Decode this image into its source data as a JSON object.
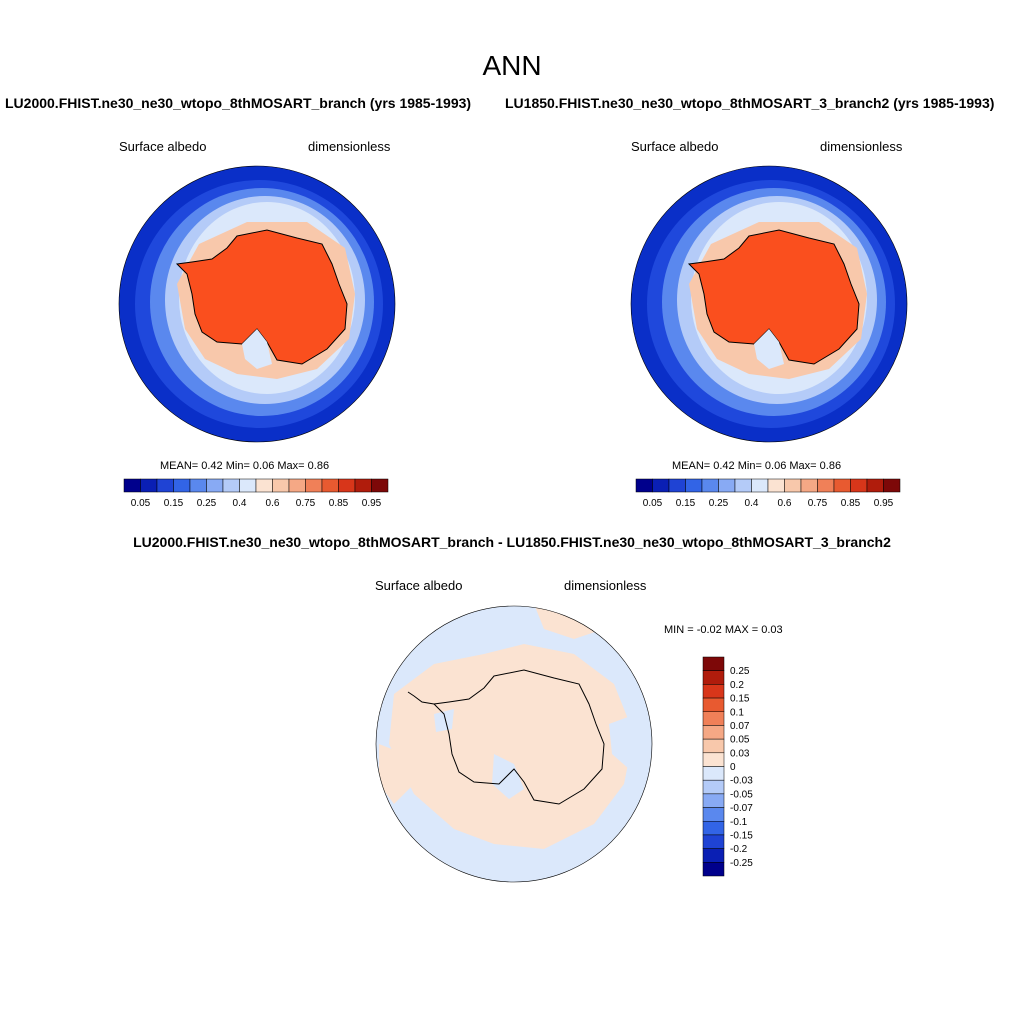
{
  "title": "ANN",
  "variable": "Surface albedo",
  "units": "dimensionless",
  "panels": [
    {
      "case_title": "LU2000.FHIST.ne30_ne30_wtopo_8thMOSART_branch (yrs 1985-1993)",
      "stats": "MEAN=   0.42  Min=   0.06  Max=   0.86"
    },
    {
      "case_title": "LU1850.FHIST.ne30_ne30_wtopo_8thMOSART_3_branch2 (yrs 1985-1993)",
      "stats": "MEAN=   0.42  Min=   0.06  Max=   0.86"
    }
  ],
  "diff": {
    "title": "LU2000.FHIST.ne30_ne30_wtopo_8thMOSART_branch - LU1850.FHIST.ne30_ne30_wtopo_8thMOSART_3_branch2",
    "stats": "MIN =  -0.02 MAX =   0.03"
  },
  "colorbar_main": {
    "colors": [
      "#00008c",
      "#0a1fb4",
      "#1f43d4",
      "#3264e6",
      "#5a88ee",
      "#88aaf4",
      "#b4cbf8",
      "#dbe8fb",
      "#fbe3d2",
      "#f8c8ab",
      "#f5a885",
      "#f08058",
      "#e85a30",
      "#d8361a",
      "#b01c0c",
      "#7d0808"
    ],
    "tick_labels": [
      "0.05",
      "0.15",
      "0.25",
      "0.4",
      "0.6",
      "0.75",
      "0.85",
      "0.95"
    ]
  },
  "colorbar_diff": {
    "colors": [
      "#7d0808",
      "#b01c0c",
      "#d8361a",
      "#e85a30",
      "#f08058",
      "#f5a885",
      "#f8c8ab",
      "#fbe3d2",
      "#dbe8fb",
      "#b4cbf8",
      "#88aaf4",
      "#5a88ee",
      "#3264e6",
      "#1f43d4",
      "#0a1fb4",
      "#00008c"
    ],
    "tick_labels": [
      "0.25",
      "0.2",
      "0.15",
      "0.1",
      "0.07",
      "0.05",
      "0.03",
      "0",
      "-0.03",
      "-0.05",
      "-0.07",
      "-0.1",
      "-0.15",
      "-0.2",
      "-0.25"
    ]
  },
  "map_colors": {
    "ocean_outer": "#0a2fc8",
    "ocean_mid": "#1f48dc",
    "ice_edge": "#5a88ee",
    "sea_ice_outer": "#b4cbf8",
    "sea_ice_inner": "#dbe8fb",
    "coast_pink": "#f8c8ab",
    "continent": "#fa4f1e",
    "diff_pos": "#fbe3d2",
    "diff_neg": "#dbe8fb"
  }
}
